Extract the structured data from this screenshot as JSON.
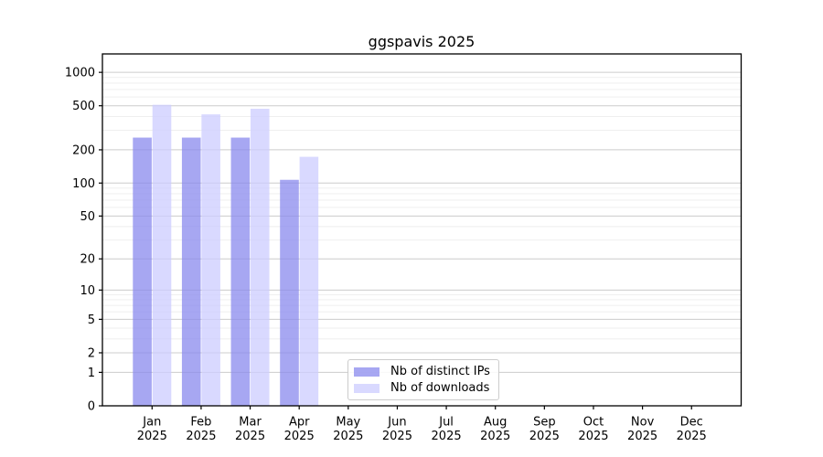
{
  "figure": {
    "background_color": "#ffffff",
    "plot_border_color": "#000000",
    "grid_major_color": "#cccccc",
    "grid_minor_color": "#ededed"
  },
  "chart_data": {
    "type": "bar",
    "title": "ggspavis 2025",
    "xlabel": "",
    "ylabel": "",
    "categories": [
      "Jan 2025",
      "Feb 2025",
      "Mar 2025",
      "Apr 2025",
      "May 2025",
      "Jun 2025",
      "Jul 2025",
      "Aug 2025",
      "Sep 2025",
      "Oct 2025",
      "Nov 2025",
      "Dec 2025"
    ],
    "series": [
      {
        "name": "Nb of distinct IPs",
        "color": "#8888ee",
        "fill_alpha": 0.74,
        "values": [
          258,
          258,
          258,
          107,
          0,
          0,
          0,
          0,
          0,
          0,
          0,
          0
        ]
      },
      {
        "name": "Nb of downloads",
        "color": "#ccccff",
        "fill_alpha": 0.74,
        "values": [
          510,
          418,
          470,
          173,
          0,
          0,
          0,
          0,
          0,
          0,
          0,
          0
        ]
      }
    ],
    "yscale": "log10(value+1)",
    "yticks": [
      0,
      1,
      2,
      5,
      10,
      20,
      50,
      100,
      200,
      500,
      1000
    ],
    "yticks_minor": [
      3,
      4,
      6,
      7,
      8,
      9,
      30,
      40,
      60,
      70,
      80,
      90,
      300,
      400,
      600,
      700,
      800,
      900
    ],
    "ylim": [
      0,
      1465
    ],
    "grid": "horizontal, major and minor",
    "legend": {
      "position": "lower center, inside plot",
      "entries": [
        "Nb of distinct IPs",
        "Nb of downloads"
      ]
    }
  }
}
